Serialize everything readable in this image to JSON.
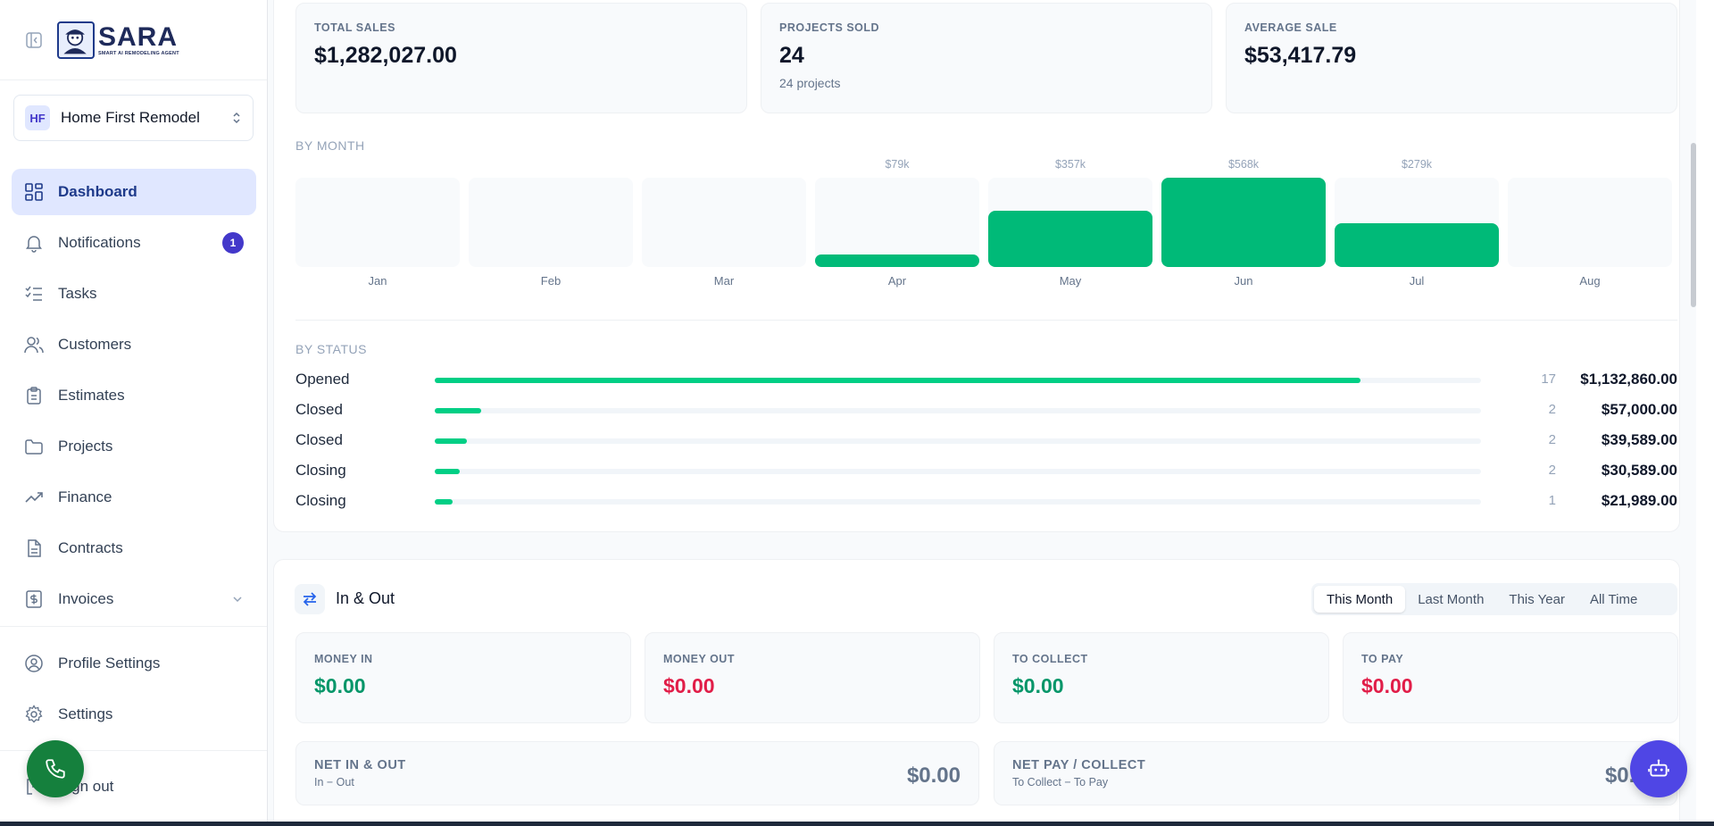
{
  "brand": {
    "title": "SARA",
    "subtitle": "SMART AI REMODELING AGENT"
  },
  "company": {
    "initials": "HF",
    "name": "Home First Remodel"
  },
  "nav": [
    {
      "label": "Dashboard",
      "icon": "dashboard-icon",
      "active": true
    },
    {
      "label": "Notifications",
      "icon": "bell-icon",
      "badge": "1"
    },
    {
      "label": "Tasks",
      "icon": "tasks-icon"
    },
    {
      "label": "Customers",
      "icon": "users-icon"
    },
    {
      "label": "Estimates",
      "icon": "clipboard-icon"
    },
    {
      "label": "Projects",
      "icon": "folder-icon"
    },
    {
      "label": "Finance",
      "icon": "trend-icon"
    },
    {
      "label": "Contracts",
      "icon": "document-icon"
    },
    {
      "label": "Invoices",
      "icon": "invoice-icon",
      "has_chevron": true
    }
  ],
  "bottom_nav": [
    {
      "label": "Profile Settings",
      "icon": "user-circle-icon"
    },
    {
      "label": "Settings",
      "icon": "gear-icon"
    }
  ],
  "signout_label": "Sign out",
  "stats": [
    {
      "label": "TOTAL SALES",
      "value": "$1,282,027.00",
      "sub": ""
    },
    {
      "label": "PROJECTS SOLD",
      "value": "24",
      "sub": "24 projects"
    },
    {
      "label": "AVERAGE SALE",
      "value": "$53,417.79",
      "sub": ""
    }
  ],
  "by_month_label": "BY MONTH",
  "months": [
    {
      "name": "Jan",
      "value_label": "",
      "value": 0
    },
    {
      "name": "Feb",
      "value_label": "",
      "value": 0
    },
    {
      "name": "Mar",
      "value_label": "",
      "value": 0
    },
    {
      "name": "Apr",
      "value_label": "$79k",
      "value": 79
    },
    {
      "name": "May",
      "value_label": "$357k",
      "value": 357
    },
    {
      "name": "Jun",
      "value_label": "$568k",
      "value": 568
    },
    {
      "name": "Jul",
      "value_label": "$279k",
      "value": 279
    },
    {
      "name": "Aug",
      "value_label": "",
      "value": 0
    }
  ],
  "by_status_label": "BY STATUS",
  "statuses": [
    {
      "name": "Opened",
      "count": "17",
      "amount": "$1,132,860.00",
      "value": 1132860
    },
    {
      "name": "Closed",
      "count": "2",
      "amount": "$57,000.00",
      "value": 57000
    },
    {
      "name": "Closed",
      "count": "2",
      "amount": "$39,589.00",
      "value": 39589
    },
    {
      "name": "Closing",
      "count": "2",
      "amount": "$30,589.00",
      "value": 30589
    },
    {
      "name": "Closing",
      "count": "1",
      "amount": "$21,989.00",
      "value": 21989
    }
  ],
  "inout": {
    "title": "In & Out",
    "tabs": [
      {
        "label": "This Month",
        "active": true
      },
      {
        "label": "Last Month"
      },
      {
        "label": "This Year"
      },
      {
        "label": "All Time"
      }
    ],
    "cards": [
      {
        "label": "MONEY IN",
        "value": "$0.00",
        "tone": "green"
      },
      {
        "label": "MONEY OUT",
        "value": "$0.00",
        "tone": "red"
      },
      {
        "label": "TO COLLECT",
        "value": "$0.00",
        "tone": "green"
      },
      {
        "label": "TO PAY",
        "value": "$0.00",
        "tone": "red"
      }
    ],
    "net": [
      {
        "label": "NET IN & OUT",
        "sub": "In − Out",
        "value": "$0.00"
      },
      {
        "label": "NET PAY / COLLECT",
        "sub": "To Collect − To Pay",
        "value": "$0.00"
      }
    ]
  },
  "colors": {
    "accent": "#4338ca",
    "bar": "#00ba78",
    "status_fill": "#00cf85",
    "green": "#059669",
    "red": "#e11d48"
  }
}
